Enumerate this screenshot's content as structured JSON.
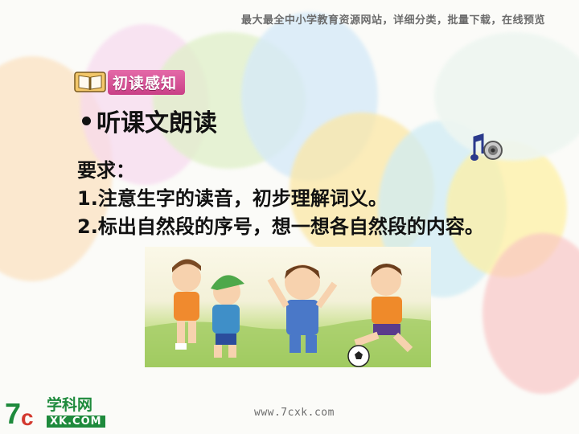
{
  "header": {
    "banner_text": "最大最全中小学教育资源网站，详细分类，批量下载，在线预览"
  },
  "section": {
    "title": "初读感知",
    "icon": "book-icon"
  },
  "activity": {
    "bullet_text": "听课文朗读",
    "audio_icon": "music-note-speaker-icon"
  },
  "requirements": {
    "heading": "要求：",
    "items": [
      "1.注意生字的读音，初步理解词义。",
      "2.标出自然段的序号，想一想各自然段的内容。"
    ]
  },
  "illustration": {
    "description_icon": "children-playing-football-image"
  },
  "footer": {
    "url": "www.7cxk.com",
    "logo_cn": "学科网",
    "logo_en": "XK.COM",
    "logo_mark": "7C"
  },
  "colors": {
    "tag_pink": "#d14e92",
    "logo_green": "#1e8a3c",
    "text": "#111111"
  }
}
